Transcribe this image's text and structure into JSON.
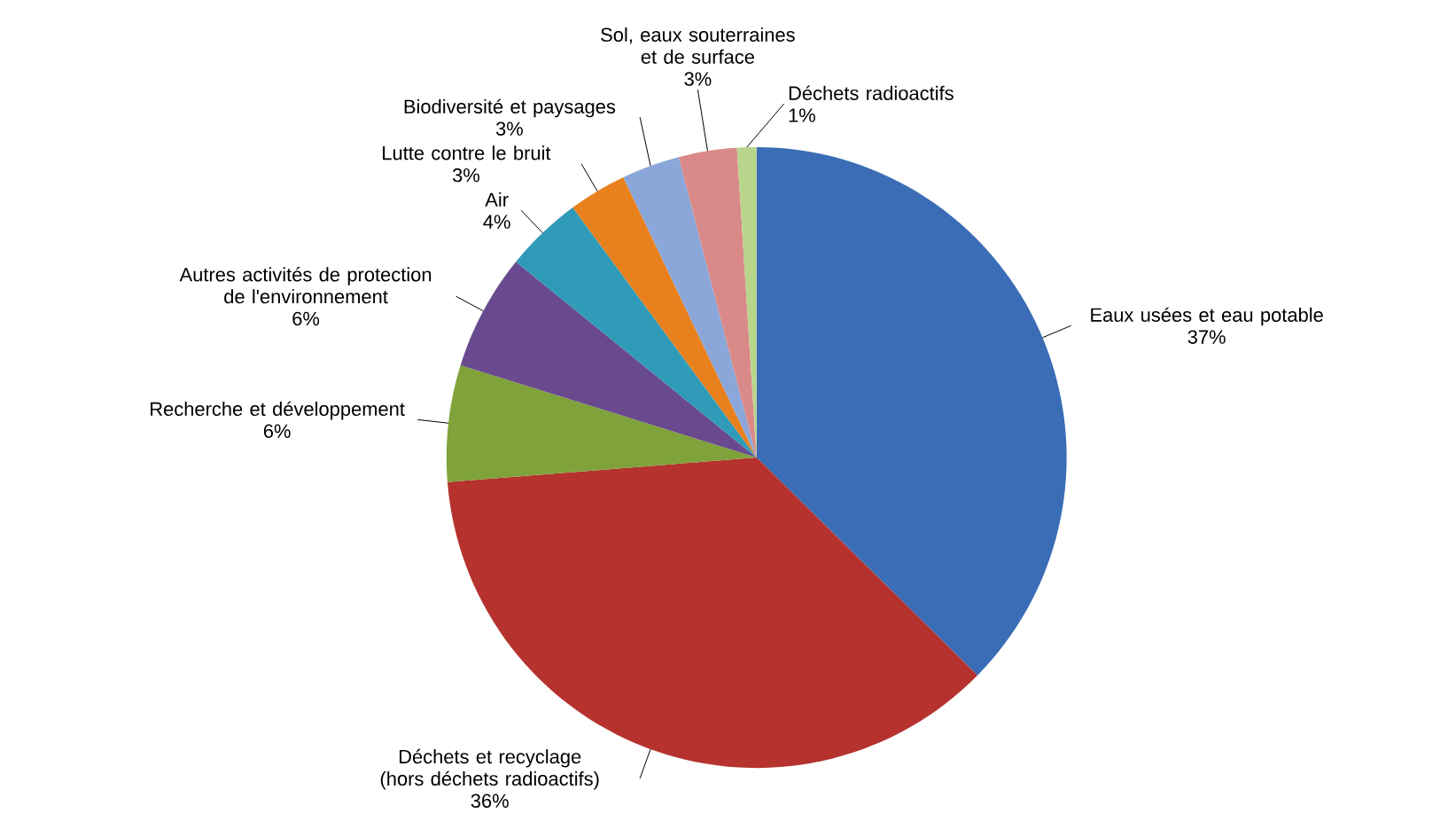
{
  "chart_data": {
    "type": "pie",
    "categories": [
      "Eaux usées et eau potable",
      "Déchets et recyclage (hors déchets radioactifs)",
      "Recherche et développement",
      "Autres activités de protection de l'environnement",
      "Air",
      "Lutte contre le bruit",
      "Biodiversité et paysages",
      "Sol, eaux souterraines et de surface",
      "Déchets radioactifs"
    ],
    "values": [
      37,
      36,
      6,
      6,
      4,
      3,
      3,
      3,
      1
    ],
    "value_labels": [
      "37%",
      "36%",
      "6%",
      "6%",
      "4%",
      "3%",
      "3%",
      "3%",
      "1%"
    ],
    "colors": [
      "#3a6db5",
      "#b5322e",
      "#7fa23a",
      "#694a8e",
      "#2f9bb8",
      "#e8801e",
      "#8ba6d9",
      "#d98a88",
      "#b9d58c"
    ]
  }
}
